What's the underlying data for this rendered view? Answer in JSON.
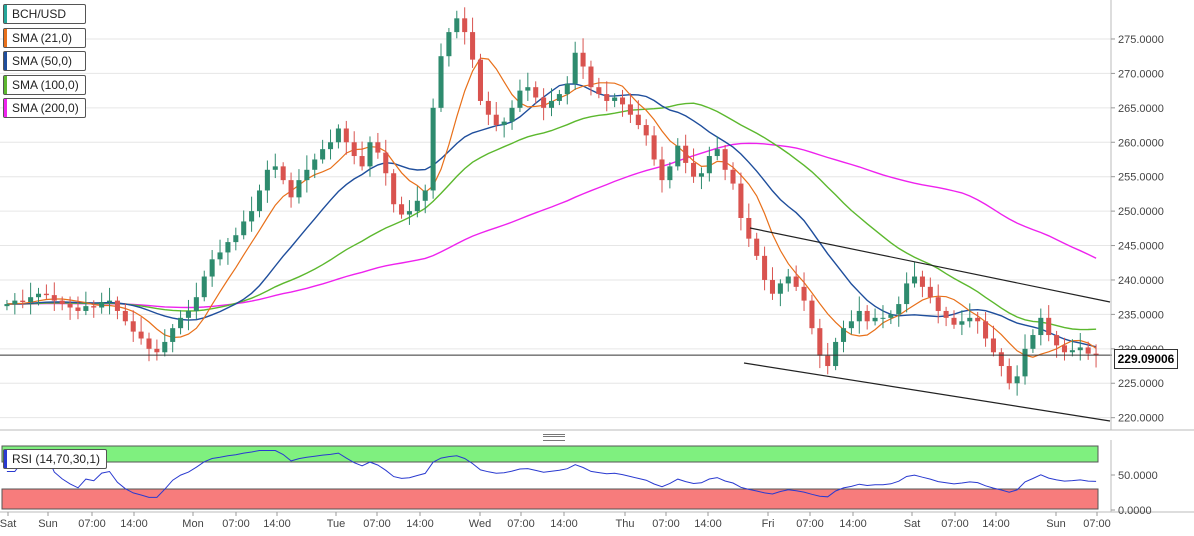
{
  "chart_data": {
    "type": "candlestick",
    "symbol": "BCH/USD",
    "price_axis": {
      "ticks": [
        "275.0000",
        "270.0000",
        "265.0000",
        "260.0000",
        "255.0000",
        "250.0000",
        "245.0000",
        "240.0000",
        "235.0000",
        "230.0000",
        "225.0000",
        "220.0000"
      ],
      "ylim": [
        218.5,
        279.5
      ]
    },
    "rsi_axis": {
      "ticks": [
        "50.0000",
        "0.0000"
      ],
      "ylim": [
        0,
        100
      ]
    },
    "x_ticks": [
      "Sat",
      "Sun",
      "07:00",
      "14:00",
      "Mon",
      "07:00",
      "14:00",
      "Tue",
      "07:00",
      "14:00",
      "Wed",
      "07:00",
      "14:00",
      "Thu",
      "07:00",
      "14:00",
      "Fri",
      "07:00",
      "14:00",
      "Sat",
      "07:00",
      "14:00",
      "Sun",
      "07:00"
    ],
    "last_price": "229.09006",
    "last_price_value": 229.09,
    "legend": [
      {
        "label": "BCH/USD",
        "color": "#26a69a"
      },
      {
        "label": "SMA (21,0)",
        "color": "#e8701a"
      },
      {
        "label": "SMA (50,0)",
        "color": "#1f4e9c"
      },
      {
        "label": "SMA (100,0)",
        "color": "#5cb82e"
      },
      {
        "label": "SMA (200,0)",
        "color": "#ee22ee"
      }
    ],
    "rsi_label": "RSI (14,70,30,1)",
    "colors": {
      "up": "#2e8b6e",
      "down": "#d9534f",
      "sma21": "#e8701a",
      "sma50": "#1f4e9c",
      "sma100": "#5cb82e",
      "sma200": "#ee22ee",
      "rsi": "#2a3ad0",
      "overbought": "#7ff07f",
      "oversold": "#f77c7c"
    },
    "closes": [
      236.5,
      237.0,
      236.8,
      237.5,
      238.0,
      237.8,
      237.0,
      236.5,
      236.0,
      235.5,
      236.2,
      236.0,
      236.8,
      237.0,
      235.5,
      234.0,
      232.5,
      231.5,
      230.0,
      229.5,
      231.0,
      233.0,
      234.5,
      235.5,
      237.5,
      240.5,
      243.0,
      244.0,
      245.5,
      246.5,
      248.5,
      250.0,
      253.0,
      256.0,
      256.5,
      254.5,
      252.0,
      254.5,
      256.0,
      257.5,
      259.0,
      260.0,
      262.0,
      260.0,
      258.0,
      256.5,
      260.0,
      258.5,
      255.5,
      251.0,
      249.5,
      250.0,
      251.5,
      253.0,
      265.0,
      272.5,
      276.0,
      278.0,
      276.0,
      272.0,
      266.0,
      264.0,
      262.5,
      263.0,
      265.0,
      267.5,
      268.0,
      266.5,
      265.0,
      266.0,
      267.0,
      268.5,
      273.0,
      271.0,
      268.0,
      267.0,
      266.0,
      266.5,
      265.5,
      264.0,
      262.5,
      261.0,
      257.5,
      254.5,
      256.5,
      259.5,
      257.0,
      255.0,
      255.5,
      258.0,
      259.0,
      256.0,
      254.0,
      249.0,
      246.0,
      243.5,
      240.0,
      238.0,
      239.5,
      240.5,
      239.0,
      237.0,
      233.0,
      229.0,
      227.5,
      231.0,
      233.0,
      234.0,
      235.5,
      234.0,
      234.5,
      234.5,
      235.0,
      236.5,
      239.5,
      240.5,
      239.0,
      237.5,
      235.5,
      234.5,
      233.5,
      234.0,
      234.5,
      234.0,
      231.5,
      229.5,
      227.5,
      225.0,
      226.0,
      230.0,
      232.0,
      234.5,
      232.0,
      230.5,
      229.5,
      229.8,
      230.2,
      229.3,
      229.09
    ],
    "annotations": [
      "descending-channel-upper",
      "descending-channel-lower",
      "last-price-line"
    ]
  }
}
